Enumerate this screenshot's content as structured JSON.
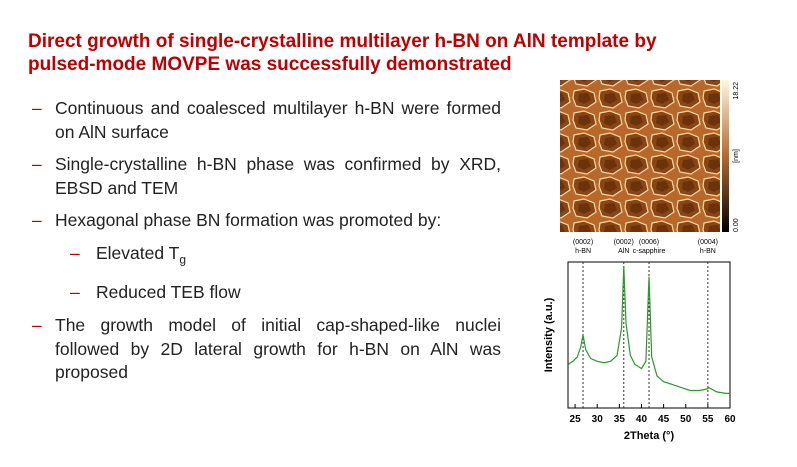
{
  "title": "Direct growth of single-crystalline multilayer h-BN on AlN template by pulsed-mode MOVPE was successfully demonstrated",
  "bullets": [
    {
      "text": "Continuous and coalesced multilayer h-BN were formed on AlN surface"
    },
    {
      "text": "Single-crystalline h-BN phase was confirmed by XRD, EBSD and TEM"
    },
    {
      "text": "Hexagonal phase BN formation was promoted by:",
      "children": [
        {
          "text": "Elevated T",
          "sub": "g"
        },
        {
          "text": "Reduced TEB flow"
        }
      ]
    },
    {
      "text": "The growth model of initial cap-shaped-like nuclei followed by 2D lateral growth for h-BN on AlN was proposed"
    }
  ],
  "afm_image": {
    "scale_max": "18.22",
    "unit": "[nm]",
    "scale_min": "0.00"
  },
  "chart_data": {
    "type": "line",
    "xlabel": "2Theta (°)",
    "ylabel": "Intensity (a.u.)",
    "xlim": [
      23.4,
      60
    ],
    "xticks": [
      25,
      30,
      35,
      40,
      45,
      50,
      55,
      60
    ],
    "ylim": [
      0,
      100
    ],
    "color": "#2a9a2a",
    "peaks": [
      {
        "label": [
          "(0002)",
          "h-BN"
        ],
        "position": 26.8
      },
      {
        "label": [
          "(0002)",
          "AlN"
        ],
        "position": 36
      },
      {
        "label": [
          "(0006)",
          "c-sapphire"
        ],
        "position": 41.7
      },
      {
        "label": [
          "(0004)",
          "h-BN"
        ],
        "position": 55
      }
    ],
    "x": [
      23.5,
      24.5,
      25.5,
      26.3,
      26.8,
      27.4,
      28.5,
      30,
      31.5,
      33,
      34.5,
      35.5,
      36,
      36.5,
      37.5,
      38.5,
      40,
      41,
      41.7,
      42.3,
      43.5,
      45,
      47,
      49,
      51,
      53,
      54.8,
      55.2,
      57,
      59,
      60
    ],
    "values": [
      30,
      32,
      35,
      42,
      50,
      40,
      34,
      32,
      31,
      32,
      36,
      55,
      97,
      58,
      36,
      30,
      27,
      32,
      90,
      35,
      22,
      18,
      16,
      14,
      12,
      12,
      13,
      14,
      11,
      10,
      10
    ]
  }
}
